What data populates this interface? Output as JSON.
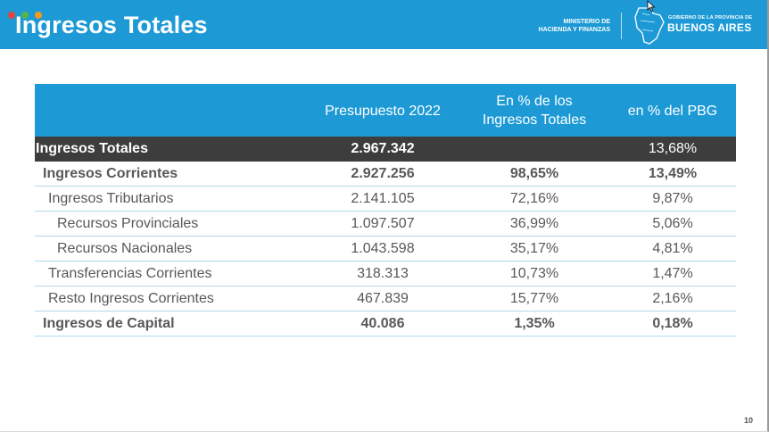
{
  "header": {
    "title": "Ingresos Totales",
    "ministry_line1": "MINISTERIO DE",
    "ministry_line2": "HACIENDA Y FINANZAS",
    "gov_small": "GOBIERNO DE LA PROVINCIA DE",
    "gov_big": "BUENOS AIRES",
    "colors": {
      "bar": "#1d9ad6",
      "dot_red": "#e2453b",
      "dot_green": "#56b548",
      "dot_orange": "#f29a1d"
    }
  },
  "table": {
    "columns": [
      "",
      "Presupuesto 2022",
      "En % de los Ingresos Totales",
      "en % del PBG"
    ],
    "column_lines": {
      "c2_line1": "En % de los",
      "c2_line2": "Ingresos Totales"
    },
    "rows": [
      {
        "label": "Ingresos Totales",
        "budget": "2.967.342",
        "pct_total": "",
        "pct_pbg": "13,68%"
      },
      {
        "label": "Ingresos Corrientes",
        "budget": "2.927.256",
        "pct_total": "98,65%",
        "pct_pbg": "13,49%"
      },
      {
        "label": "Ingresos Tributarios",
        "budget": "2.141.105",
        "pct_total": "72,16%",
        "pct_pbg": "9,87%"
      },
      {
        "label": "Recursos Provinciales",
        "budget": "1.097.507",
        "pct_total": "36,99%",
        "pct_pbg": "5,06%"
      },
      {
        "label": "Recursos Nacionales",
        "budget": "1.043.598",
        "pct_total": "35,17%",
        "pct_pbg": "4,81%"
      },
      {
        "label": "Transferencias Corrientes",
        "budget": "318.313",
        "pct_total": "10,73%",
        "pct_pbg": "1,47%"
      },
      {
        "label": "Resto Ingresos Corrientes",
        "budget": "467.839",
        "pct_total": "15,77%",
        "pct_pbg": "2,16%"
      },
      {
        "label": "Ingresos de Capital",
        "budget": "40.086",
        "pct_total": "1,35%",
        "pct_pbg": "0,18%"
      }
    ]
  },
  "footer": {
    "page_number": "10"
  }
}
